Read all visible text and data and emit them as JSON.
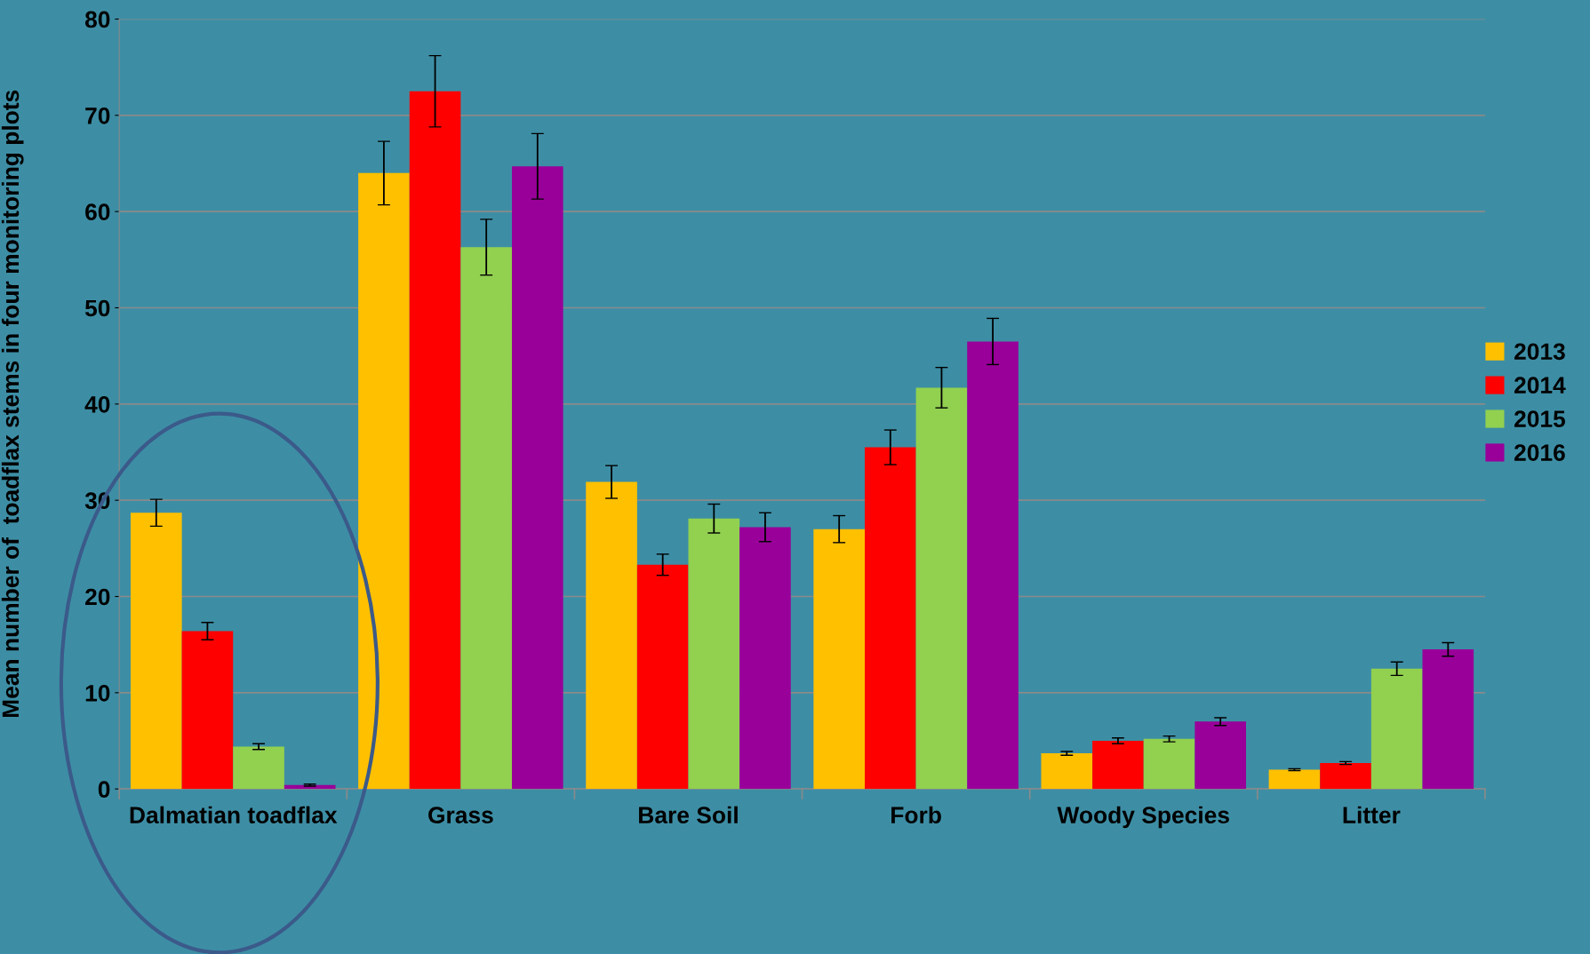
{
  "chart_data": {
    "type": "bar",
    "ylabel": "Mean number of  toadflax stems in four monitoring plots",
    "categories": [
      "Dalmatian toadflax",
      "Grass",
      "Bare Soil",
      "Forb",
      "Woody Species",
      "Litter"
    ],
    "series": [
      {
        "name": "2013",
        "color": "#ffc000",
        "values": [
          28.7,
          64.0,
          31.9,
          27.0,
          3.7,
          2.0
        ],
        "errors": [
          1.4,
          3.3,
          1.7,
          1.4,
          0.2,
          0.1
        ]
      },
      {
        "name": "2014",
        "color": "#ff0000",
        "values": [
          16.4,
          72.5,
          23.3,
          35.5,
          5.0,
          2.7
        ],
        "errors": [
          0.9,
          3.7,
          1.1,
          1.8,
          0.3,
          0.15
        ]
      },
      {
        "name": "2015",
        "color": "#92d050",
        "values": [
          4.4,
          56.3,
          28.1,
          41.7,
          5.2,
          12.5
        ],
        "errors": [
          0.3,
          2.9,
          1.5,
          2.1,
          0.3,
          0.7
        ]
      },
      {
        "name": "2016",
        "color": "#990099",
        "values": [
          0.4,
          64.7,
          27.2,
          46.5,
          7.0,
          14.5
        ],
        "errors": [
          0.1,
          3.4,
          1.5,
          2.4,
          0.4,
          0.7
        ]
      }
    ],
    "ylim": [
      0,
      80
    ],
    "yticks": [
      0,
      10,
      20,
      30,
      40,
      50,
      60,
      70,
      80
    ],
    "grid": "y",
    "legend": "right"
  }
}
